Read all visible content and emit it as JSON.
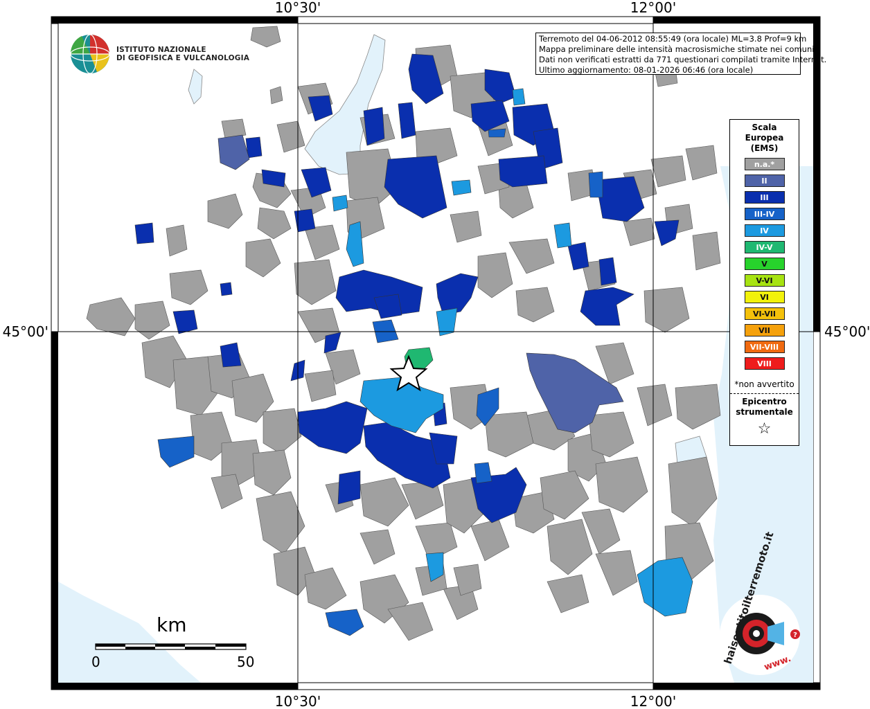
{
  "coords": {
    "lon_left": "10°30'",
    "lon_right": "12°00'",
    "lat_mid": "45°00'"
  },
  "logo": {
    "line1": "ISTITUTO NAZIONALE",
    "line2": "DI GEOFISICA E VULCANOLOGIA"
  },
  "info": {
    "line1": "Terremoto del 04-06-2012 08:55:49 (ora locale) ML=3.8 Prof=9 km",
    "line2": "Mappa preliminare delle intensità macrosismiche stimate nei comuni",
    "line3": "Dati non verificati estratti da 771 questionari compilati tramite Internet.",
    "line4": "Ultimo aggiornamento: 08-01-2026 06:46 (ora locale)"
  },
  "legend": {
    "title1": "Scala",
    "title2": "Europea",
    "title3": "(EMS)",
    "items": [
      {
        "label": "n.a.*",
        "color": "#a0a0a0"
      },
      {
        "label": "II",
        "color": "#4f63a8"
      },
      {
        "label": "III",
        "color": "#0a2fae"
      },
      {
        "label": "III-IV",
        "color": "#1662c8"
      },
      {
        "label": "IV",
        "color": "#1c9ae0"
      },
      {
        "label": "IV-V",
        "color": "#1fb871"
      },
      {
        "label": "V",
        "color": "#27d32c"
      },
      {
        "label": "V-VI",
        "color": "#a7e312"
      },
      {
        "label": "VI",
        "color": "#f2f20b"
      },
      {
        "label": "VI-VII",
        "color": "#f4c10b"
      },
      {
        "label": "VII",
        "color": "#f5a10c"
      },
      {
        "label": "VII-VIII",
        "color": "#f06a10"
      },
      {
        "label": "VIII",
        "color": "#ee1c1c"
      }
    ],
    "note": "*non avvertito",
    "epicenter1": "Epicentro",
    "epicenter2": "strumentale",
    "epicenter_symbol": "☆"
  },
  "scalebar": {
    "unit": "km",
    "start": "0",
    "end": "50"
  },
  "hsit": {
    "text": "haisentitoilterremoto.it",
    "www": "www.",
    "q": "?"
  }
}
